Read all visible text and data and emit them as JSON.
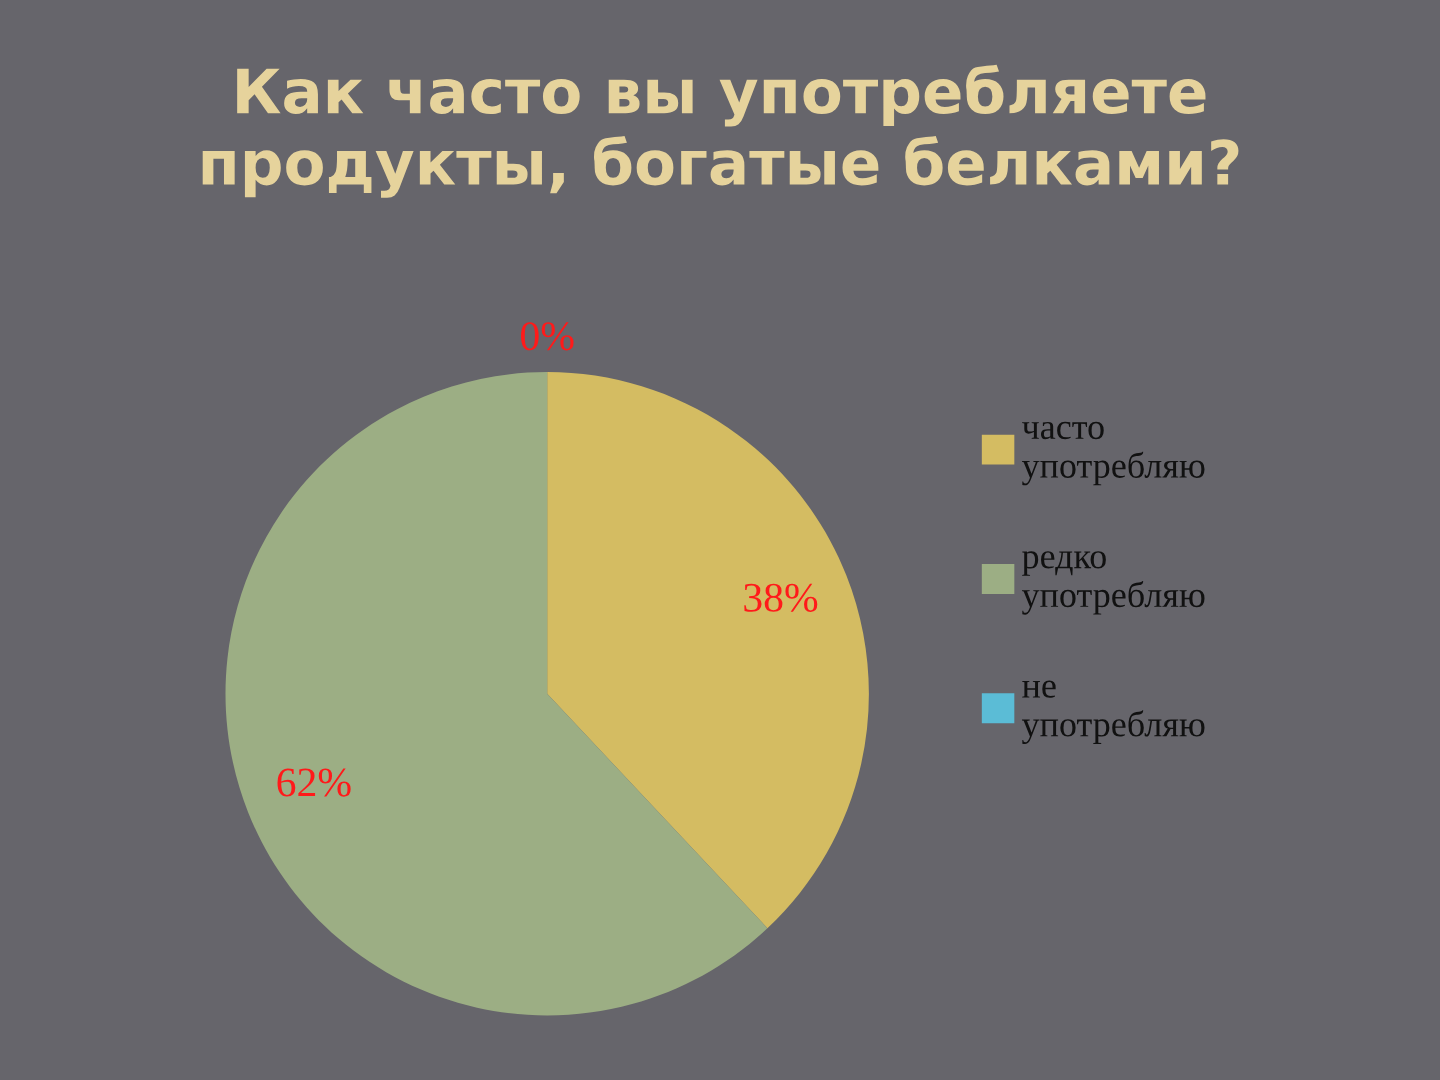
{
  "chart_data": {
    "type": "pie",
    "title": "Как часто вы употребляете продукты, богатые белками?",
    "categories": [
      "часто употребляю",
      "редко употребляю",
      "не употребляю"
    ],
    "values": [
      38,
      62,
      0
    ],
    "colors": [
      "#d4bc62",
      "#9cae84",
      "#5bbcd6"
    ],
    "value_labels": [
      "38%",
      "62%",
      "0%"
    ],
    "legend": "right"
  }
}
